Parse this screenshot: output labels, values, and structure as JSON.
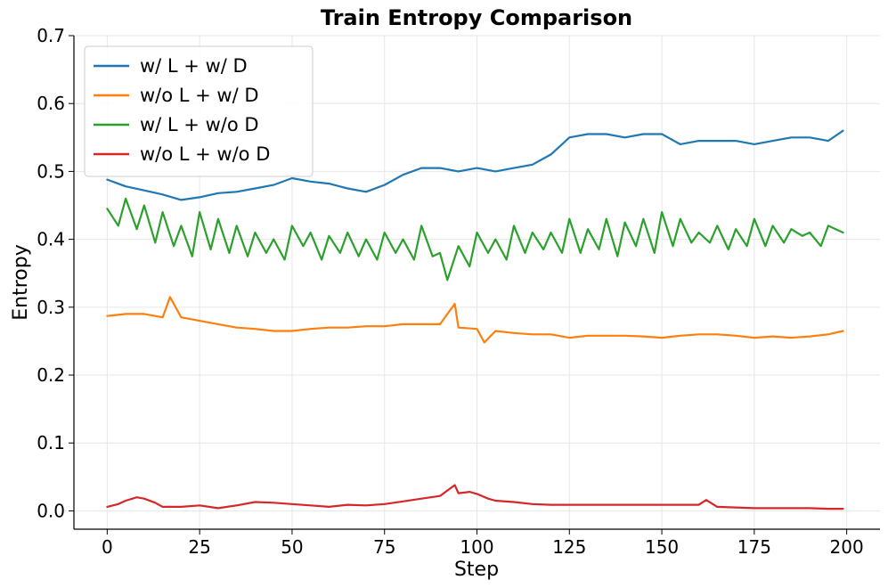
{
  "chart_data": {
    "type": "line",
    "title": "Train Entropy Comparison",
    "xlabel": "Step",
    "ylabel": "Entropy",
    "xlim": [
      -9,
      209
    ],
    "ylim": [
      -0.027,
      0.7
    ],
    "xticks": [
      0,
      25,
      50,
      75,
      100,
      125,
      150,
      175,
      200
    ],
    "xtick_labels": [
      "0",
      "25",
      "50",
      "75",
      "100",
      "125",
      "150",
      "175",
      "200"
    ],
    "yticks": [
      0.0,
      0.1,
      0.2,
      0.3,
      0.4,
      0.5,
      0.6,
      0.7
    ],
    "ytick_labels": [
      "0.0",
      "0.1",
      "0.2",
      "0.3",
      "0.4",
      "0.5",
      "0.6",
      "0.7"
    ],
    "grid": true,
    "legend_position": "top-left",
    "series": [
      {
        "name": "w/ L + w/ D",
        "color": "#1f77b4",
        "x": [
          0,
          5,
          10,
          15,
          20,
          25,
          30,
          35,
          40,
          45,
          50,
          55,
          60,
          65,
          70,
          75,
          80,
          85,
          90,
          95,
          100,
          105,
          110,
          115,
          120,
          125,
          130,
          135,
          140,
          145,
          150,
          155,
          160,
          165,
          170,
          175,
          180,
          185,
          190,
          195,
          199
        ],
        "y": [
          0.488,
          0.478,
          0.472,
          0.466,
          0.458,
          0.462,
          0.468,
          0.47,
          0.475,
          0.48,
          0.49,
          0.485,
          0.482,
          0.475,
          0.47,
          0.48,
          0.495,
          0.505,
          0.505,
          0.5,
          0.505,
          0.5,
          0.505,
          0.51,
          0.525,
          0.55,
          0.555,
          0.555,
          0.55,
          0.555,
          0.555,
          0.54,
          0.545,
          0.545,
          0.545,
          0.54,
          0.545,
          0.55,
          0.55,
          0.545,
          0.56
        ]
      },
      {
        "name": "w/o L + w/ D",
        "color": "#ff7f0e",
        "x": [
          0,
          5,
          10,
          15,
          17,
          20,
          25,
          30,
          35,
          40,
          45,
          50,
          55,
          60,
          65,
          70,
          75,
          80,
          85,
          90,
          94,
          95,
          100,
          102,
          105,
          110,
          115,
          120,
          125,
          130,
          135,
          140,
          145,
          150,
          155,
          160,
          165,
          170,
          175,
          180,
          185,
          190,
          195,
          199
        ],
        "y": [
          0.287,
          0.29,
          0.29,
          0.285,
          0.315,
          0.285,
          0.28,
          0.275,
          0.27,
          0.268,
          0.265,
          0.265,
          0.268,
          0.27,
          0.27,
          0.272,
          0.272,
          0.275,
          0.275,
          0.275,
          0.305,
          0.27,
          0.268,
          0.248,
          0.265,
          0.262,
          0.26,
          0.26,
          0.255,
          0.258,
          0.258,
          0.258,
          0.257,
          0.255,
          0.258,
          0.26,
          0.26,
          0.258,
          0.255,
          0.257,
          0.255,
          0.257,
          0.26,
          0.265
        ]
      },
      {
        "name": "w/ L + w/o D",
        "color": "#2ca02c",
        "x": [
          0,
          3,
          5,
          8,
          10,
          13,
          15,
          18,
          20,
          23,
          25,
          28,
          30,
          33,
          35,
          38,
          40,
          43,
          45,
          48,
          50,
          53,
          55,
          58,
          60,
          63,
          65,
          68,
          70,
          73,
          75,
          78,
          80,
          83,
          85,
          88,
          90,
          92,
          95,
          98,
          100,
          103,
          105,
          108,
          110,
          113,
          115,
          118,
          120,
          123,
          125,
          128,
          130,
          133,
          135,
          138,
          140,
          143,
          145,
          148,
          150,
          153,
          155,
          158,
          160,
          163,
          165,
          168,
          170,
          173,
          175,
          178,
          180,
          183,
          185,
          188,
          190,
          193,
          195,
          199
        ],
        "y": [
          0.445,
          0.42,
          0.46,
          0.415,
          0.45,
          0.395,
          0.44,
          0.39,
          0.42,
          0.375,
          0.44,
          0.385,
          0.43,
          0.38,
          0.42,
          0.375,
          0.41,
          0.38,
          0.4,
          0.37,
          0.42,
          0.39,
          0.41,
          0.37,
          0.405,
          0.38,
          0.41,
          0.375,
          0.4,
          0.37,
          0.41,
          0.38,
          0.4,
          0.37,
          0.42,
          0.375,
          0.38,
          0.34,
          0.39,
          0.36,
          0.41,
          0.38,
          0.4,
          0.37,
          0.42,
          0.38,
          0.41,
          0.385,
          0.41,
          0.38,
          0.43,
          0.38,
          0.415,
          0.385,
          0.43,
          0.375,
          0.425,
          0.39,
          0.43,
          0.38,
          0.44,
          0.39,
          0.43,
          0.395,
          0.41,
          0.395,
          0.42,
          0.385,
          0.415,
          0.39,
          0.43,
          0.39,
          0.42,
          0.395,
          0.415,
          0.405,
          0.41,
          0.39,
          0.42,
          0.41
        ]
      },
      {
        "name": "w/o L + w/o D",
        "color": "#d62728",
        "x": [
          0,
          3,
          5,
          8,
          10,
          13,
          15,
          20,
          25,
          30,
          35,
          40,
          45,
          50,
          55,
          60,
          65,
          70,
          75,
          80,
          85,
          90,
          94,
          95,
          98,
          100,
          103,
          105,
          110,
          115,
          120,
          125,
          130,
          135,
          140,
          145,
          150,
          155,
          160,
          162,
          165,
          170,
          175,
          180,
          185,
          190,
          195,
          199
        ],
        "y": [
          0.006,
          0.01,
          0.015,
          0.02,
          0.018,
          0.012,
          0.006,
          0.006,
          0.008,
          0.004,
          0.008,
          0.013,
          0.012,
          0.01,
          0.008,
          0.006,
          0.009,
          0.008,
          0.01,
          0.014,
          0.018,
          0.022,
          0.038,
          0.026,
          0.028,
          0.025,
          0.018,
          0.015,
          0.013,
          0.01,
          0.009,
          0.009,
          0.009,
          0.009,
          0.009,
          0.009,
          0.009,
          0.009,
          0.009,
          0.016,
          0.006,
          0.005,
          0.004,
          0.004,
          0.004,
          0.004,
          0.003,
          0.003
        ]
      }
    ]
  }
}
